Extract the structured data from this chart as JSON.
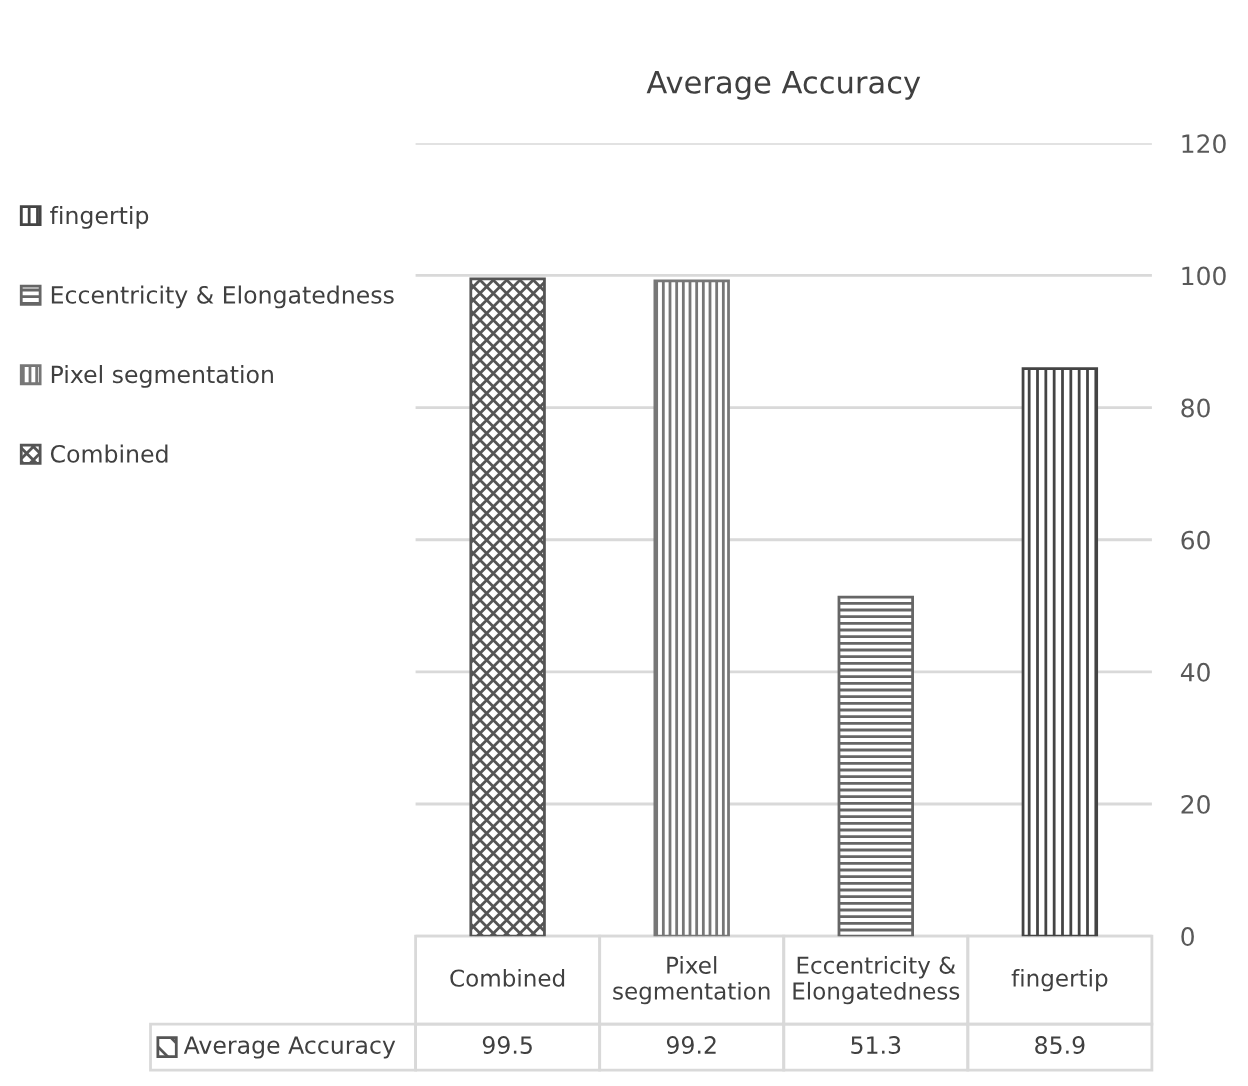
{
  "chart_data": {
    "type": "bar",
    "title": "Average Accuracy",
    "categories": [
      "Combined",
      "Pixel segmentation",
      "Eccentricity & Elongatedness",
      "fingertip"
    ],
    "series": [
      {
        "name": "Average Accuracy",
        "colors": [
          "#555555",
          "#777777",
          "#666666",
          "#444444"
        ],
        "values": [
          99.5,
          99.2,
          51.3,
          85.9
        ]
      }
    ],
    "ylim": [
      0,
      120
    ],
    "yticks": [
      0,
      20,
      40,
      60,
      80,
      100,
      120
    ],
    "grid": "y",
    "legend": "left",
    "data_labels": true
  }
}
